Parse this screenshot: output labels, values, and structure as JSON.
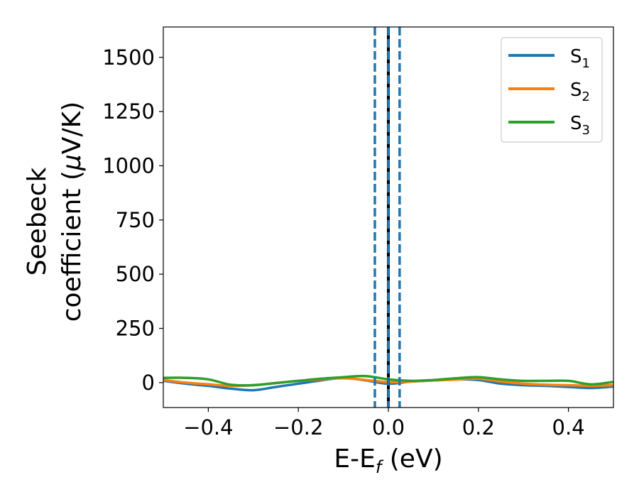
{
  "chart_data": {
    "type": "line",
    "xlabel_main": "E-E",
    "xlabel_sub": "f",
    "xlabel_unit": " (eV)",
    "ylabel_line1": "Seebeck",
    "ylabel_line2": "coefficient  (",
    "ylabel_mu": "μ",
    "ylabel_unit": "V/K)",
    "xlim": [
      -0.5,
      0.5
    ],
    "ylim": [
      -115,
      1640
    ],
    "x_ticks": [
      -0.4,
      -0.2,
      0.0,
      0.2,
      0.4
    ],
    "x_tick_labels": [
      "−0.4",
      "−0.2",
      "0.0",
      "0.2",
      "0.4"
    ],
    "y_ticks": [
      0,
      250,
      500,
      750,
      1000,
      1250,
      1500
    ],
    "y_tick_labels": [
      "0",
      "250",
      "500",
      "750",
      "1000",
      "1250",
      "1500"
    ],
    "grid": false,
    "legend_position": "top-right",
    "vertical_lines": [
      {
        "x": 0.0,
        "style": "solid",
        "color": "#000000"
      },
      {
        "x": 0.0,
        "style": "dashed",
        "color": "#1f77b4"
      },
      {
        "x": -0.03,
        "style": "dashed",
        "color": "#1f77b4"
      },
      {
        "x": 0.025,
        "style": "dashed",
        "color": "#1f77b4"
      }
    ],
    "series": [
      {
        "name": "S",
        "sub": "1",
        "color": "#1f77b4",
        "x": [
          -0.5,
          -0.45,
          -0.4,
          -0.35,
          -0.3,
          -0.25,
          -0.2,
          -0.15,
          -0.1,
          -0.05,
          0.0,
          0.05,
          0.1,
          0.15,
          0.2,
          0.25,
          0.3,
          0.35,
          0.4,
          0.45,
          0.5
        ],
        "y": [
          8,
          -5,
          -15,
          -28,
          -35,
          -20,
          -5,
          10,
          22,
          10,
          -5,
          5,
          10,
          15,
          12,
          -5,
          -12,
          -15,
          -20,
          -25,
          -18
        ]
      },
      {
        "name": "S",
        "sub": "2",
        "color": "#ff7f0e",
        "x": [
          -0.5,
          -0.45,
          -0.4,
          -0.35,
          -0.3,
          -0.25,
          -0.2,
          -0.15,
          -0.1,
          -0.05,
          0.0,
          0.05,
          0.1,
          0.15,
          0.2,
          0.25,
          0.3,
          0.35,
          0.4,
          0.45,
          0.5
        ],
        "y": [
          12,
          0,
          -8,
          -15,
          -12,
          -2,
          8,
          15,
          20,
          12,
          2,
          5,
          10,
          14,
          18,
          5,
          -5,
          -10,
          -12,
          -15,
          -12
        ]
      },
      {
        "name": "S",
        "sub": "3",
        "color": "#2ca02c",
        "x": [
          -0.5,
          -0.45,
          -0.4,
          -0.35,
          -0.3,
          -0.25,
          -0.2,
          -0.15,
          -0.1,
          -0.05,
          0.0,
          0.05,
          0.1,
          0.15,
          0.2,
          0.25,
          0.3,
          0.35,
          0.4,
          0.45,
          0.5
        ],
        "y": [
          22,
          22,
          15,
          -10,
          -12,
          -2,
          8,
          18,
          25,
          30,
          15,
          8,
          12,
          20,
          25,
          15,
          8,
          8,
          8,
          -8,
          3
        ]
      }
    ]
  }
}
